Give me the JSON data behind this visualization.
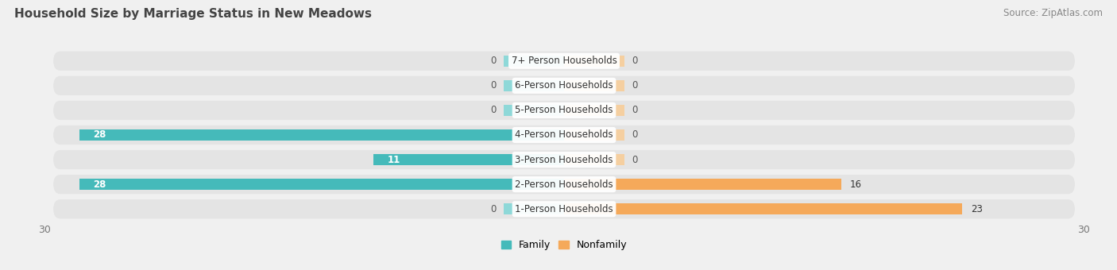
{
  "title": "Household Size by Marriage Status in New Meadows",
  "source": "Source: ZipAtlas.com",
  "categories": [
    "7+ Person Households",
    "6-Person Households",
    "5-Person Households",
    "4-Person Households",
    "3-Person Households",
    "2-Person Households",
    "1-Person Households"
  ],
  "family_values": [
    0,
    0,
    0,
    28,
    11,
    28,
    0
  ],
  "nonfamily_values": [
    0,
    0,
    0,
    0,
    0,
    16,
    23
  ],
  "family_color": "#45BABA",
  "nonfamily_color": "#F5A95A",
  "family_color_light": "#8ED8D8",
  "nonfamily_color_light": "#F5CFA0",
  "xlim": [
    -30,
    30
  ],
  "bg_color": "#f0f0f0",
  "row_bg_color": "#e8e8e8",
  "title_fontsize": 11,
  "source_fontsize": 8.5,
  "label_fontsize": 8.5,
  "value_fontsize": 8.5,
  "stub_size": 3.5
}
